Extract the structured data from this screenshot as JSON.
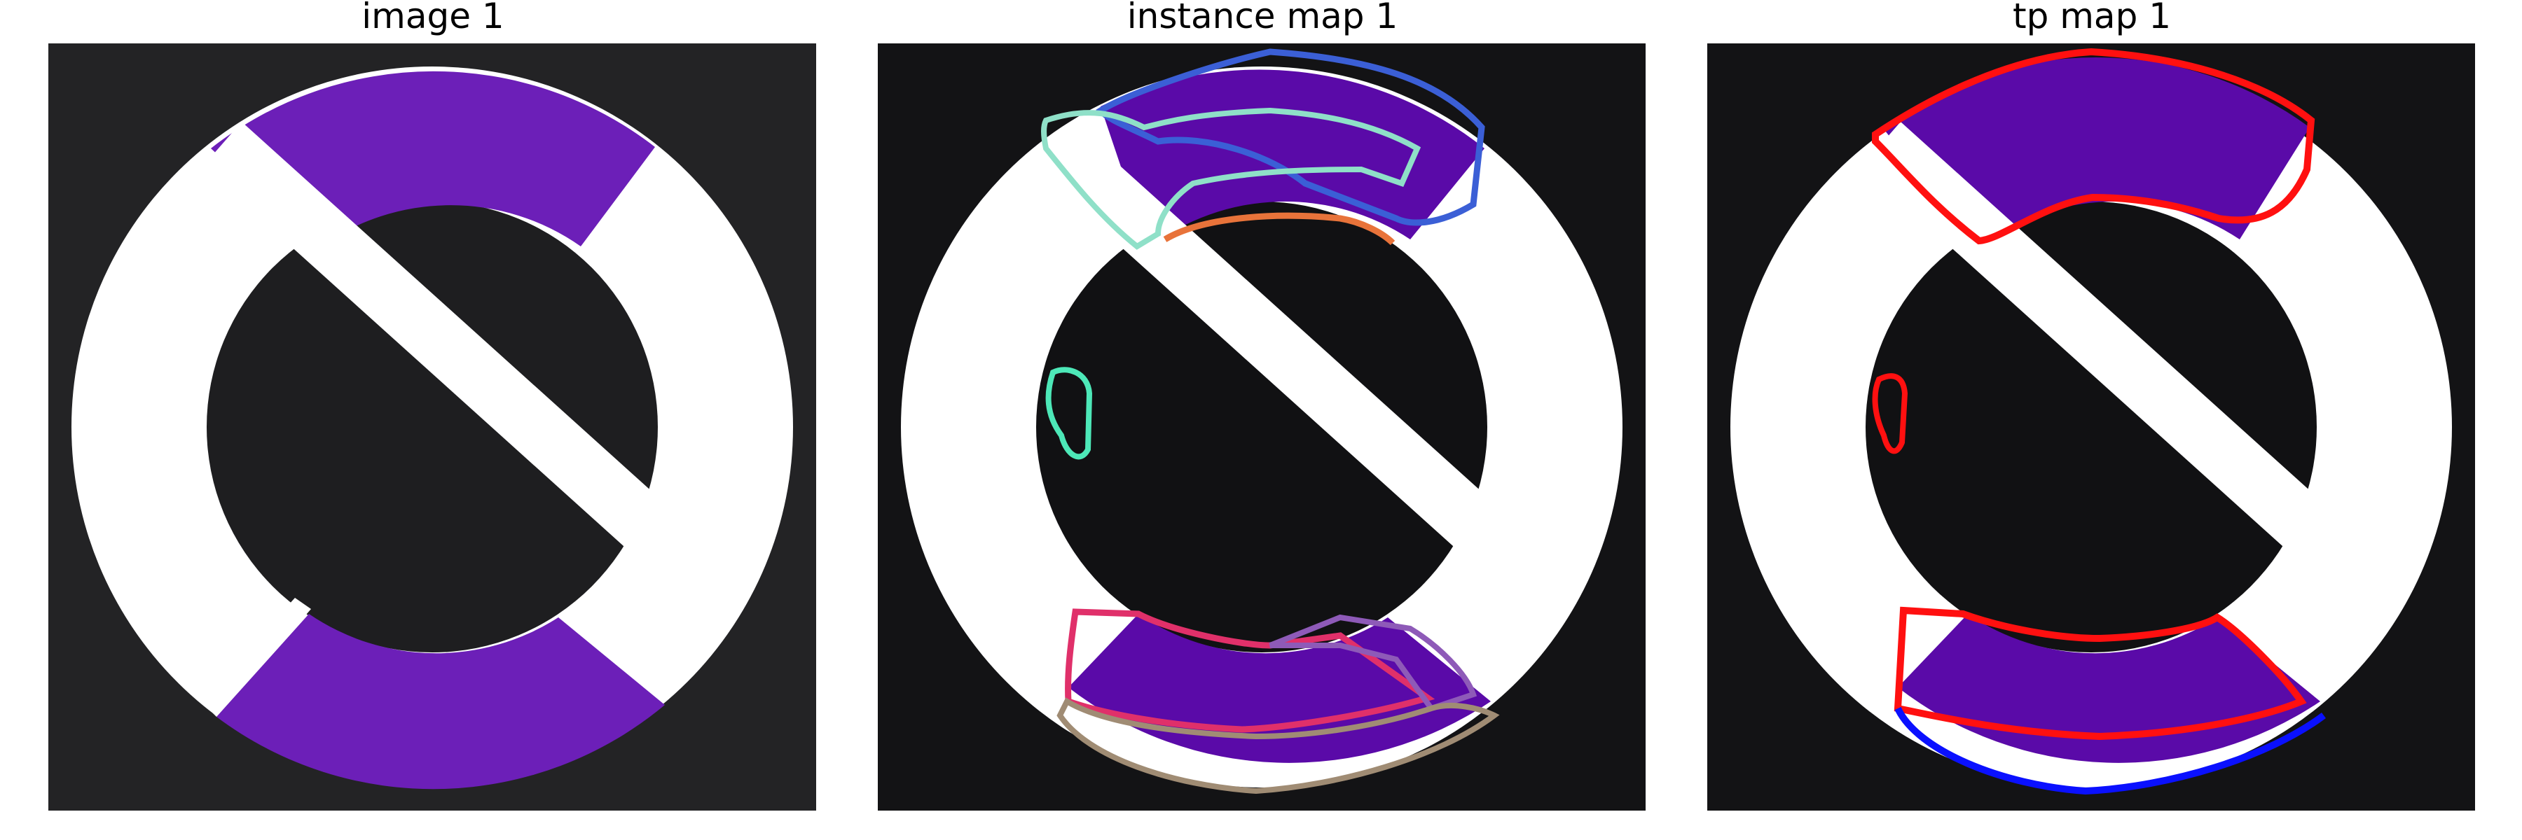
{
  "panels": [
    {
      "title": "image 1",
      "background": "#232325"
    },
    {
      "title": "instance map 1",
      "background": "#131315"
    },
    {
      "title": "tp map 1",
      "background": "#131315"
    }
  ],
  "colors": {
    "purple_image": "#6c1fb8",
    "purple_map": "#5a0aa8",
    "ring_white": "#ffffff",
    "inner_dark_image": "#1e1e20",
    "inner_dark_map": "#111113",
    "instance_outlines": [
      "#3b5fd6",
      "#8fe0c8",
      "#e8733a",
      "#4de8b8",
      "#e0306a",
      "#8e5ab8",
      "#a08c74"
    ],
    "tp_match": "#ff1010",
    "tp_unmatched": "#0a10ff"
  }
}
